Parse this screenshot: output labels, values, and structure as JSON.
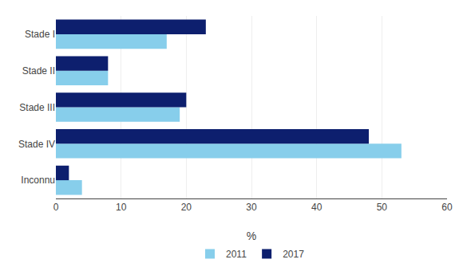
{
  "chart_data": {
    "type": "bar",
    "orientation": "horizontal",
    "categories": [
      "Inconnu",
      "Stade IV",
      "Stade III",
      "Stade II",
      "Stade I"
    ],
    "series": [
      {
        "name": "2011",
        "color": "#87ceeb",
        "values": [
          4,
          53,
          19,
          8,
          17
        ]
      },
      {
        "name": "2017",
        "color": "#0d1f6e",
        "values": [
          2,
          48,
          20,
          8,
          23
        ]
      }
    ],
    "xlabel": "%",
    "xlim": [
      0,
      60
    ],
    "xticks": [
      0,
      10,
      20,
      30,
      40,
      50,
      60
    ],
    "grid": true,
    "legend": "bottom"
  }
}
